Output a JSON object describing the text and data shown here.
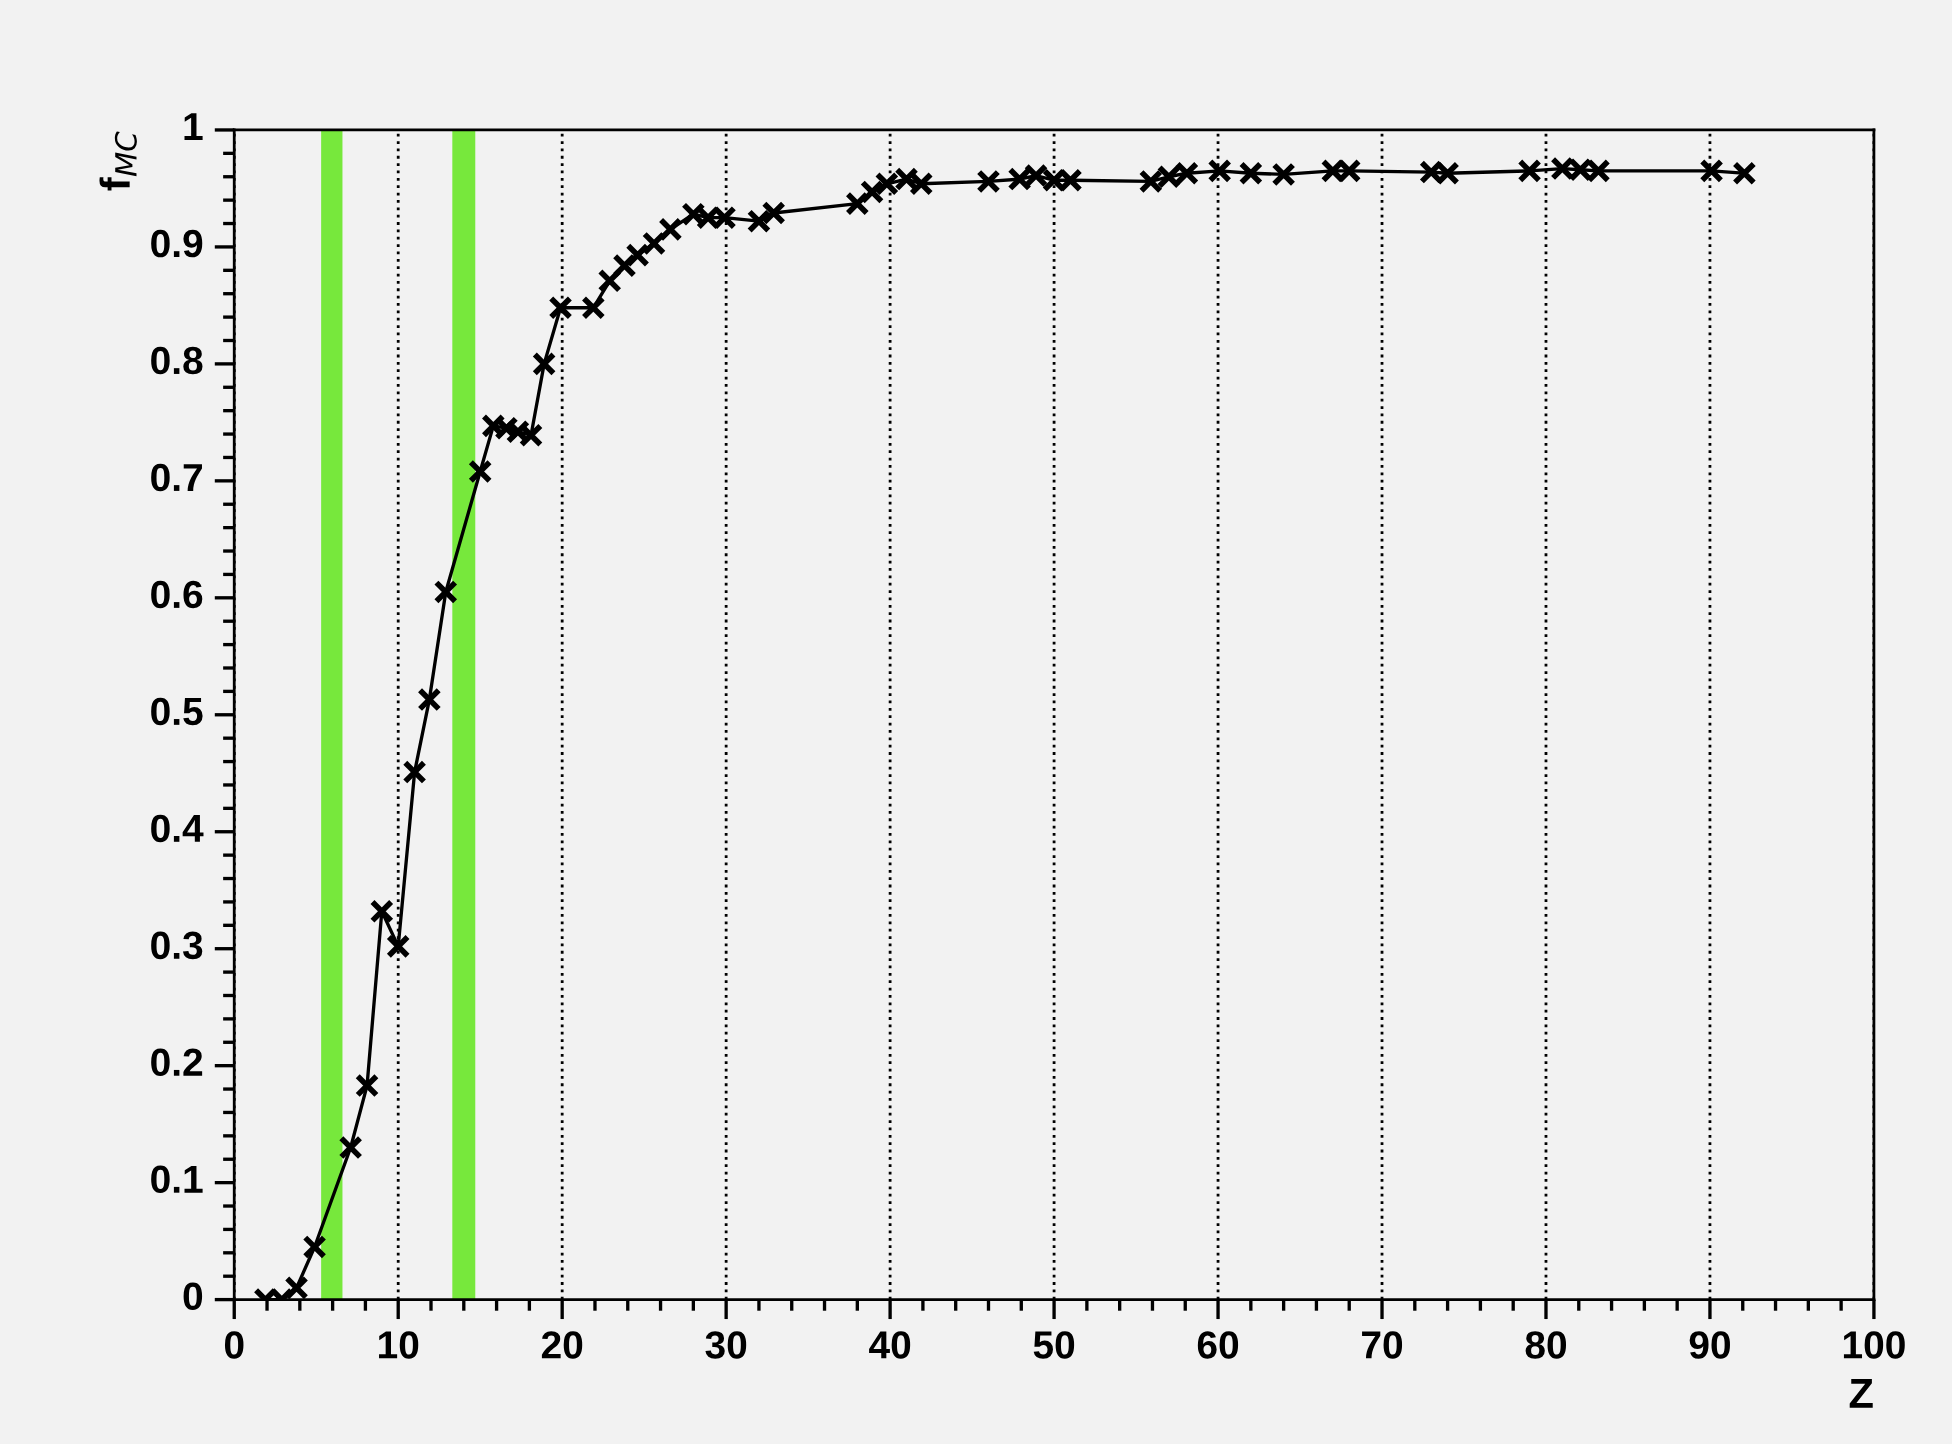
{
  "chart_data": {
    "type": "line",
    "ylabel": "f$_{MC}$",
    "xlabel": "Z",
    "xlim": [
      0,
      100
    ],
    "ylim": [
      0,
      1
    ],
    "xticks": [
      0,
      10,
      20,
      30,
      40,
      50,
      60,
      70,
      80,
      90,
      100
    ],
    "yticks": [
      0,
      0.1,
      0.2,
      0.3,
      0.4,
      0.5,
      0.6,
      0.7,
      0.8,
      0.9,
      1
    ],
    "grid": "x",
    "marker": "cross",
    "line_style": "solid",
    "bands": [
      {
        "axis": "x",
        "from": 5.3,
        "to": 6.6,
        "color": "#77e83c"
      },
      {
        "axis": "x",
        "from": 13.3,
        "to": 14.7,
        "color": "#77e83c"
      }
    ],
    "series": [
      {
        "color": "#000000",
        "x": [
          1.9,
          2.9,
          3.8,
          4.9,
          7.1,
          8.1,
          9.0,
          10.0,
          11.0,
          11.9,
          12.9,
          15.0,
          15.8,
          16.6,
          17.3,
          18.1,
          18.9,
          19.9,
          21.9,
          22.9,
          23.8,
          24.6,
          25.6,
          26.6,
          28.0,
          28.9,
          29.9,
          32.0,
          32.9,
          38.0,
          38.9,
          39.8,
          41.0,
          41.9,
          46.0,
          47.9,
          48.9,
          50.0,
          51.0,
          55.9,
          57.0,
          58.1,
          60.1,
          62.0,
          64.0,
          67.0,
          68.0,
          73.0,
          74.0,
          79.0,
          81.0,
          82.1,
          83.2,
          90.1,
          92.1
        ],
        "values": [
          0.0,
          0.0,
          0.01,
          0.045,
          0.13,
          0.183,
          0.332,
          0.302,
          0.451,
          0.513,
          0.605,
          0.708,
          0.747,
          0.745,
          0.742,
          0.739,
          0.8,
          0.848,
          0.848,
          0.871,
          0.884,
          0.893,
          0.903,
          0.915,
          0.928,
          0.925,
          0.925,
          0.922,
          0.929,
          0.937,
          0.947,
          0.954,
          0.958,
          0.954,
          0.956,
          0.958,
          0.961,
          0.957,
          0.957,
          0.956,
          0.96,
          0.963,
          0.965,
          0.963,
          0.962,
          0.965,
          0.965,
          0.964,
          0.963,
          0.965,
          0.967,
          0.966,
          0.965,
          0.965,
          0.963
        ]
      }
    ]
  }
}
